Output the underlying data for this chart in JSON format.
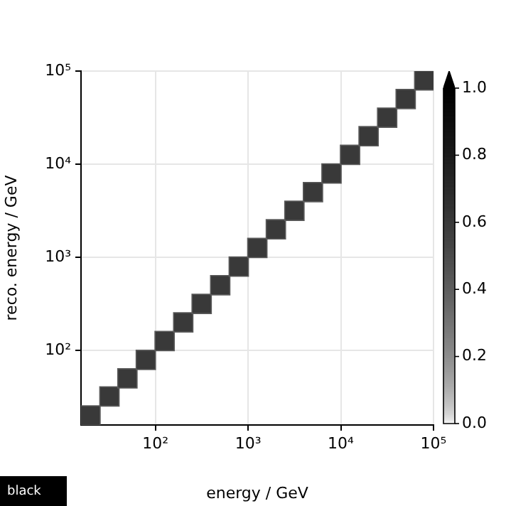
{
  "chart_data": {
    "type": "scatter",
    "xlabel": "energy / GeV",
    "ylabel": "reco. energy / GeV",
    "log": "xy",
    "grid": true,
    "legend": false,
    "marker": "square",
    "xlim": [
      15.8,
      100000
    ],
    "ylim": [
      15.8,
      100000
    ],
    "xticks": [
      {
        "value": 100,
        "label": "10²"
      },
      {
        "value": 1000,
        "label": "10³"
      },
      {
        "value": 10000,
        "label": "10⁴"
      },
      {
        "value": 100000,
        "label": "10⁵"
      }
    ],
    "yticks": [
      {
        "value": 100,
        "label": "10²"
      },
      {
        "value": 1000,
        "label": "10³"
      },
      {
        "value": 10000,
        "label": "10⁴"
      },
      {
        "value": 100000,
        "label": "10⁵"
      }
    ],
    "clim": [
      0,
      1
    ],
    "cticks": [
      {
        "value": 0,
        "label": "0.0"
      },
      {
        "value": 0.2,
        "label": "0.2"
      },
      {
        "value": 0.4,
        "label": "0.4"
      },
      {
        "value": 0.6,
        "label": "0.6"
      },
      {
        "value": 0.8,
        "label": "0.8"
      },
      {
        "value": 1,
        "label": "1.0"
      }
    ],
    "x": [
      20,
      32,
      50,
      79,
      126,
      200,
      316,
      501,
      794,
      1259,
      1995,
      3162,
      5012,
      7943,
      12589,
      19953,
      31623,
      50119,
      79433
    ],
    "values": [
      20,
      32,
      50,
      79,
      126,
      200,
      316,
      501,
      794,
      1259,
      1995,
      3162,
      5012,
      7943,
      12589,
      19953,
      31623,
      50119,
      79433
    ],
    "cvalues": [
      0.6,
      0.6,
      0.6,
      0.6,
      0.6,
      0.6,
      0.6,
      0.6,
      0.6,
      0.6,
      0.6,
      0.6,
      0.6,
      0.6,
      0.6,
      0.6,
      0.6,
      0.6,
      0.6
    ],
    "annotations": [
      "black"
    ]
  }
}
